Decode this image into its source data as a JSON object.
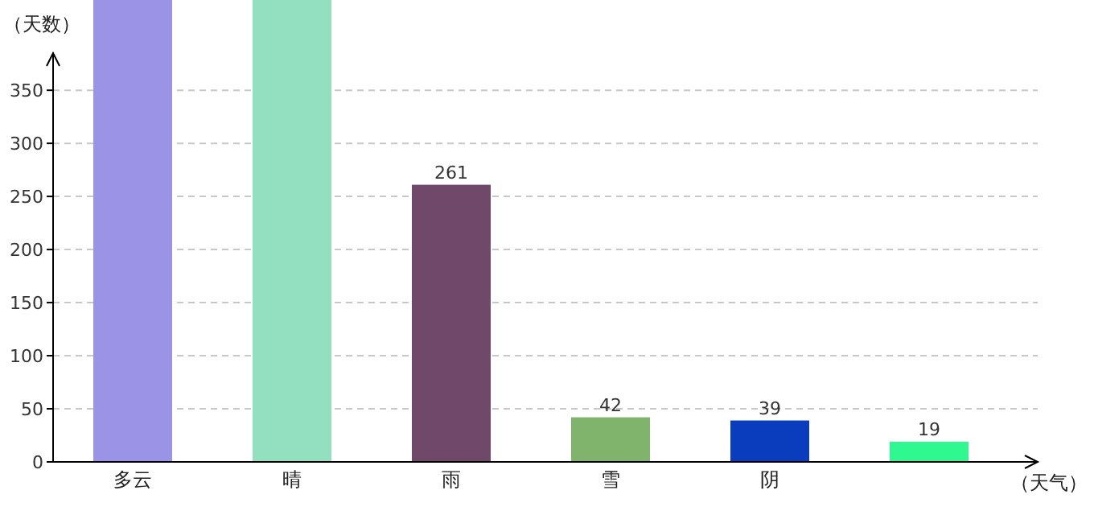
{
  "chart_data": {
    "type": "bar",
    "xlabel": "（天气）",
    "ylabel": "（天数）",
    "categories": [
      "多云",
      "晴",
      "雨",
      "雪",
      "阴",
      null
    ],
    "values": [
      435,
      435,
      261,
      42,
      39,
      19
    ],
    "value_labels": [
      null,
      null,
      "261",
      "42",
      "39",
      "19"
    ],
    "colors": [
      "#9b93e5",
      "#93e0c0",
      "#70486a",
      "#80b46c",
      "#0a3dbd",
      "#2ef88f"
    ],
    "ylim": [
      0,
      435
    ],
    "yticks": [
      0,
      50,
      100,
      150,
      200,
      250,
      300,
      350
    ],
    "grid": "y"
  }
}
